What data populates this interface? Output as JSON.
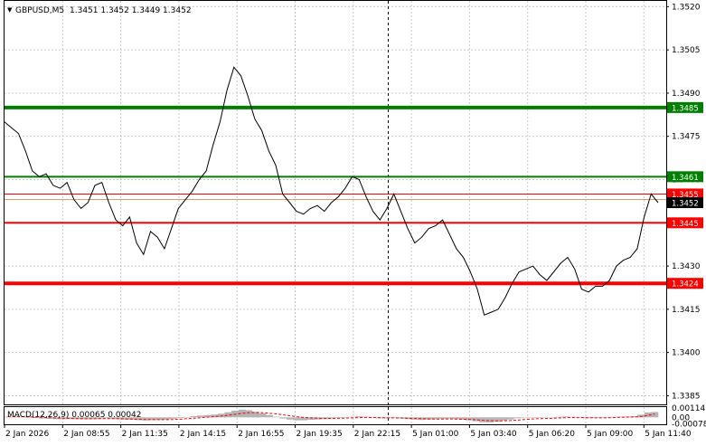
{
  "header": {
    "symbol_label": "GBPUSD,M5",
    "ohlc": "1.3451 1.3452 1.3449 1.3452",
    "dropdown_glyph": "▼"
  },
  "colors": {
    "grid": "#c8c8c8",
    "price_line": "#000000",
    "support_red": "#ff0000",
    "resist_green": "#008000",
    "macd_hist": "#b4b4b4",
    "macd_signal": "#ff0000",
    "current_price_bg": "#000000",
    "bid_line": "#d2a06e"
  },
  "chart_data": [
    {
      "type": "line",
      "title": "GBPUSD,M5",
      "ylim": [
        1.3382,
        1.3522
      ],
      "y_ticks": [
        "1.3520",
        "1.3505",
        "1.3490",
        "1.3475",
        "1.3460",
        "1.3445",
        "1.3430",
        "1.3415",
        "1.3400",
        "1.3385"
      ],
      "x_ticks": [
        "2 Jan 2026",
        "2 Jan 08:55",
        "2 Jan 11:35",
        "2 Jan 14:15",
        "2 Jan 16:55",
        "2 Jan 19:35",
        "2 Jan 22:15",
        "5 Jan 01:00",
        "5 Jan 03:40",
        "5 Jan 06:20",
        "5 Jan 09:00",
        "5 Jan 11:40"
      ],
      "x_tick_positions": [
        0,
        0.1,
        0.2,
        0.3,
        0.4,
        0.5,
        0.6,
        0.7,
        0.8,
        0.9,
        1.0,
        1.1
      ],
      "series": [
        {
          "values": [
            1.348,
            1.3478,
            1.3476,
            1.347,
            1.3463,
            1.3461,
            1.3462,
            1.3458,
            1.3457,
            1.3459,
            1.3453,
            1.345,
            1.3452,
            1.3458,
            1.3459,
            1.3452,
            1.3446,
            1.3444,
            1.3447,
            1.3438,
            1.3434,
            1.3442,
            1.344,
            1.3436,
            1.3443,
            1.345,
            1.3453,
            1.3456,
            1.346,
            1.3463,
            1.3472,
            1.348,
            1.3491,
            1.3499,
            1.3496,
            1.3489,
            1.3481,
            1.3477,
            1.347,
            1.3465,
            1.3455,
            1.3452,
            1.3449,
            1.3448,
            1.345,
            1.3451,
            1.3449,
            1.3452,
            1.3454,
            1.3457,
            1.3461,
            1.346,
            1.3454,
            1.3449,
            1.3446,
            1.345,
            1.3455,
            1.3449,
            1.3443,
            1.3438,
            1.344,
            1.3443,
            1.3444,
            1.3446,
            1.3441,
            1.3436,
            1.3433,
            1.3428,
            1.3422,
            1.3413,
            1.3414,
            1.3415,
            1.3419,
            1.3424,
            1.3428,
            1.3429,
            1.343,
            1.3427,
            1.3425,
            1.3428,
            1.3431,
            1.3433,
            1.3429,
            1.3422,
            1.3421,
            1.3423,
            1.3423,
            1.3425,
            1.343,
            1.3432,
            1.3433,
            1.3436,
            1.3447,
            1.3455,
            1.3452
          ]
        }
      ]
    },
    {
      "type": "bar",
      "title": "MACD(12,26,9) 0.00065 0.00042",
      "ylim": [
        -0.00085,
        0.00125
      ],
      "y_ticks": [
        "0.00114",
        "0.00",
        "-0.00078"
      ],
      "series": [
        {
          "name": "MACD",
          "values": [
            0.0001,
            9e-05,
            6e-05,
            2e-05,
            -8e-05,
            -0.00015,
            -0.00018,
            -0.00022,
            -0.00023,
            -0.0002,
            -0.00022,
            -0.00024,
            -0.00022,
            -0.00015,
            -0.00012,
            -0.00016,
            -0.00022,
            -0.00028,
            -0.00028,
            -0.00034,
            -0.00038,
            -0.00034,
            -0.00032,
            -0.00028,
            -0.00018,
            -8e-05,
            4e-05,
            0.00014,
            0.00022,
            0.00028,
            0.00034,
            0.00044,
            0.00062,
            0.00082,
            0.00094,
            0.00086,
            0.00068,
            0.00048,
            0.00028,
            8e-05,
            -0.00014,
            -0.00028,
            -0.00036,
            -0.00036,
            -0.0003,
            -0.00026,
            -0.00021,
            -0.00014,
            -8e-05,
            -2e-05,
            6e-05,
            0.00012,
            8e-05,
            -4e-05,
            -0.00012,
            -0.00012,
            -8e-05,
            -0.00014,
            -0.0002,
            -0.00028,
            -0.00032,
            -0.00028,
            -0.00024,
            -0.00018,
            -0.00016,
            -0.00022,
            -0.00028,
            -0.00036,
            -0.00048,
            -0.0006,
            -0.00062,
            -0.00054,
            -0.0004,
            -0.00026,
            -0.00012,
            -4e-05,
            2e-05,
            0.0,
            -4e-05,
            -2e-05,
            4e-05,
            0.0001,
            6e-05,
            -4e-05,
            -0.0001,
            -0.0001,
            -8e-05,
            -4e-05,
            4e-05,
            8e-05,
            0.0001,
            0.00014,
            0.00032,
            0.0006,
            0.00065
          ]
        },
        {
          "name": "Signal",
          "values": [
            0.0001,
            0.0001,
            9e-05,
            7e-05,
            4e-05,
            0.0,
            -4e-05,
            -8e-05,
            -0.00011,
            -0.00013,
            -0.00015,
            -0.00017,
            -0.00018,
            -0.00017,
            -0.00016,
            -0.00016,
            -0.00017,
            -0.0002,
            -0.00022,
            -0.00024,
            -0.00027,
            -0.00028,
            -0.00029,
            -0.00029,
            -0.00026,
            -0.00023,
            -0.00017,
            -0.00011,
            -4e-05,
            2e-05,
            9e-05,
            0.00016,
            0.00025,
            0.00037,
            0.00048,
            0.00056,
            0.00058,
            0.00056,
            0.0005,
            0.00042,
            0.00031,
            0.00019,
            8e-05,
            -1e-05,
            -7e-05,
            -0.00011,
            -0.00013,
            -0.00013,
            -0.00012,
            -0.0001,
            -7e-05,
            -3e-05,
            -1e-05,
            -2e-05,
            -4e-05,
            -6e-05,
            -6e-05,
            -8e-05,
            -0.0001,
            -0.00014,
            -0.00017,
            -0.0002,
            -0.00021,
            -0.00021,
            -0.0002,
            -0.00021,
            -0.00023,
            -0.00025,
            -0.0003,
            -0.00036,
            -0.00041,
            -0.00044,
            -0.00043,
            -0.0004,
            -0.00034,
            -0.00028,
            -0.00022,
            -0.00017,
            -0.00014,
            -0.00012,
            -8e-05,
            -4e-05,
            -2e-05,
            -3e-05,
            -4e-05,
            -5e-05,
            -6e-05,
            -5e-05,
            -3e-05,
            0.0,
            2e-05,
            5e-05,
            0.0001,
            0.00022,
            0.00042
          ]
        }
      ]
    }
  ],
  "levels": [
    {
      "name": "resistance-high",
      "value": 1.3485,
      "label": "1.3485",
      "color": "#008000",
      "weight": "thick"
    },
    {
      "name": "resistance",
      "value": 1.3461,
      "label": "1.3461",
      "color": "#008000",
      "weight": "thin"
    },
    {
      "name": "ask",
      "value": 1.3455,
      "label": "1.3455",
      "color": "#ff0000",
      "weight": "hair"
    },
    {
      "name": "support",
      "value": 1.3445,
      "label": "1.3445",
      "color": "#ff0000",
      "weight": "thin"
    },
    {
      "name": "support-low",
      "value": 1.3424,
      "label": "1.3424",
      "color": "#ff0000",
      "weight": "thick"
    }
  ],
  "current_price": {
    "value": 1.3452,
    "label": "1.3452"
  },
  "vertical_marker_label": "2 Jan 22:15"
}
